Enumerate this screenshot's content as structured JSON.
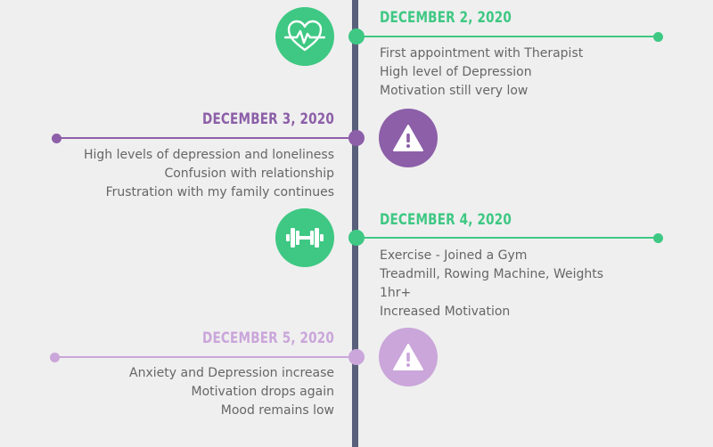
{
  "colors": {
    "background": "#efefef",
    "axis": "#59607a",
    "green": "#3ec883",
    "purple_dark": "#8c5fa8",
    "purple_light": "#caa6da",
    "text": "#666666"
  },
  "events": [
    {
      "date": "DECEMBER 2, 2020",
      "side": "right",
      "icon": "heart-pulse-icon",
      "lines": [
        "First appointment with Therapist",
        "High level of Depression",
        "Motivation still very low"
      ]
    },
    {
      "date": "DECEMBER 3, 2020",
      "side": "left",
      "icon": "warning-icon",
      "lines": [
        "High levels of depression and loneliness",
        "Confusion with relationship",
        "Frustration with my family continues"
      ]
    },
    {
      "date": "DECEMBER 4, 2020",
      "side": "right",
      "icon": "dumbbell-icon",
      "lines": [
        "Exercise - Joined a Gym",
        "Treadmill, Rowing Machine, Weights",
        "1hr+",
        "Increased Motivation"
      ]
    },
    {
      "date": "DECEMBER 5, 2020",
      "side": "left",
      "icon": "warning-icon",
      "lines": [
        "Anxiety and Depression increase",
        "Motivation drops again",
        "Mood remains low"
      ]
    }
  ]
}
